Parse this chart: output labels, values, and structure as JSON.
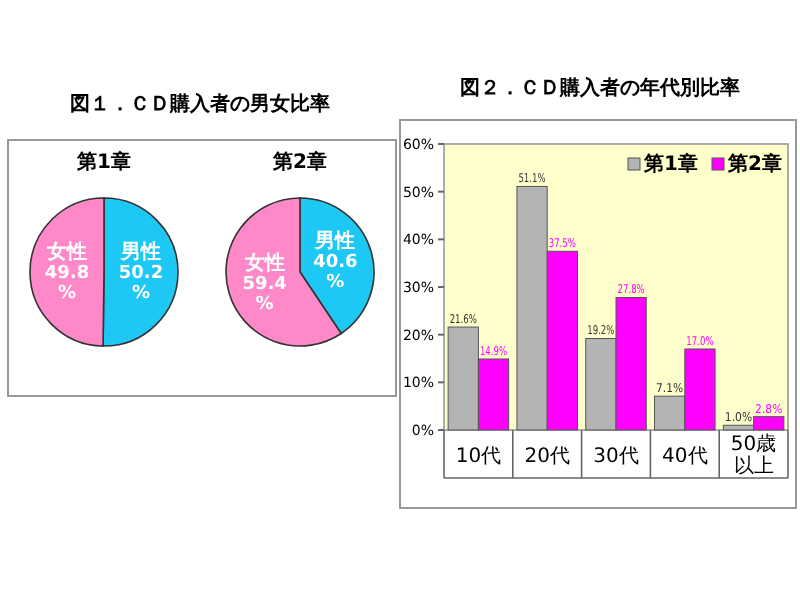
{
  "chart_data": [
    {
      "type": "pie",
      "title": "図１．ＣＤ購入者の男女比率",
      "subtitle": "第1章",
      "categories": [
        "男性",
        "女性"
      ],
      "values": [
        50.2,
        49.8
      ],
      "colors": [
        "#1ec8f5",
        "#ff88c8"
      ],
      "value_labels": [
        "50.2 %",
        "49.8 %"
      ]
    },
    {
      "type": "pie",
      "title": "第2章",
      "categories": [
        "男性",
        "女性"
      ],
      "values": [
        40.6,
        59.4
      ],
      "colors": [
        "#1ec8f5",
        "#ff88c8"
      ],
      "value_labels": [
        "40.6 %",
        "59.4 %"
      ]
    },
    {
      "type": "bar",
      "title": "図２．ＣＤ購入者の年代別比率",
      "categories": [
        "10代",
        "20代",
        "30代",
        "40代",
        "50歳以上"
      ],
      "series": [
        {
          "name": "第1章",
          "color": "#b4b4b4",
          "values": [
            21.6,
            51.1,
            19.2,
            7.1,
            1.0
          ],
          "value_labels": [
            "21.6%",
            "51.1%",
            "19.2%",
            "7.1%",
            "1.0%"
          ]
        },
        {
          "name": "第2章",
          "color": "#ff00ff",
          "values": [
            14.9,
            37.5,
            27.8,
            17.0,
            2.8
          ],
          "value_labels": [
            "14.9%",
            "37.5%",
            "27.8%",
            "17.0%",
            "2.8%"
          ]
        }
      ],
      "ylim": [
        0,
        60
      ],
      "yticks": [
        {
          "value": 0,
          "label": "0%"
        },
        {
          "value": 10,
          "label": "10%"
        },
        {
          "value": 20,
          "label": "20%"
        },
        {
          "value": 30,
          "label": "30%"
        },
        {
          "value": 40,
          "label": "40%"
        },
        {
          "value": 50,
          "label": "50%"
        },
        {
          "value": 60,
          "label": "60%"
        }
      ],
      "legend": "top right"
    }
  ]
}
